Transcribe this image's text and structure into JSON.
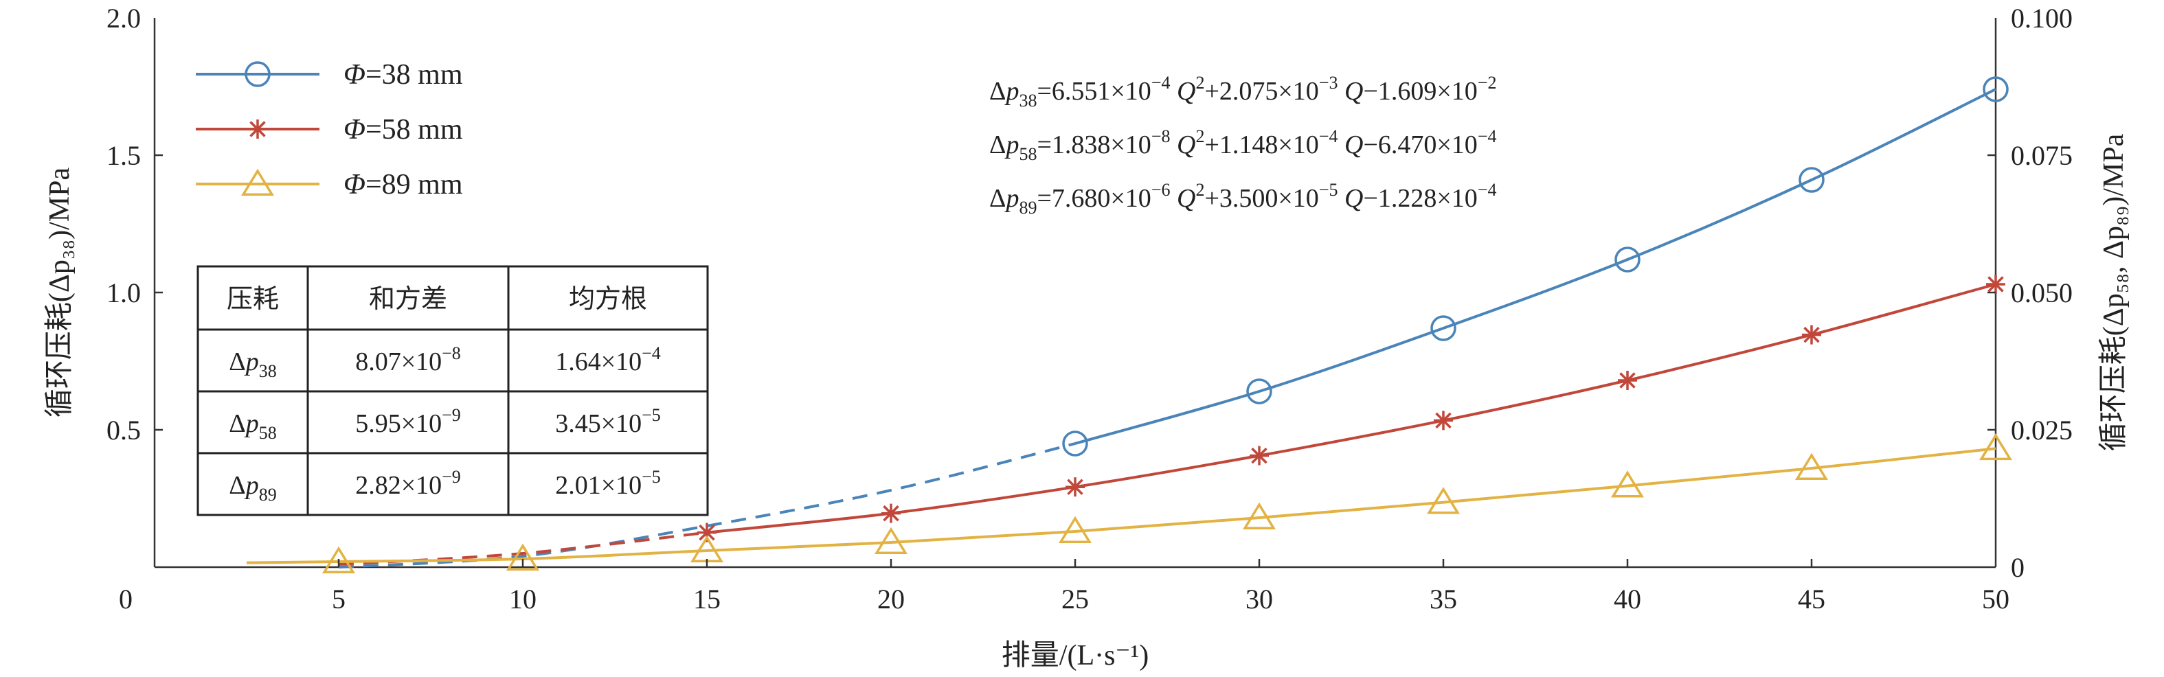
{
  "chart_data": {
    "type": "line",
    "xlabel": "排量/(L·s⁻¹)",
    "ylabel_left": "循环压耗(Δp₃₈)/MPa",
    "ylabel_right": "循环压耗(Δp₅₈, Δp₈₉)/MPa",
    "xlim": [
      0,
      50
    ],
    "ylim_left": [
      0,
      2.0
    ],
    "ylim_right": [
      0,
      0.1
    ],
    "x_ticks": [
      "0",
      "5",
      "10",
      "15",
      "20",
      "25",
      "30",
      "35",
      "40",
      "45",
      "50"
    ],
    "y_ticks_left": [
      "0.5",
      "1.0",
      "1.5",
      "2.0"
    ],
    "y_ticks_right": [
      "0",
      "0.025",
      "0.050",
      "0.075",
      "0.100"
    ],
    "legend_position": "top-left",
    "series": [
      {
        "name": "Φ=38 mm",
        "axis": "left",
        "marker": "circle",
        "color": "#4a84b8",
        "x": [
          25,
          30,
          35,
          40,
          45,
          50
        ],
        "y": [
          0.45,
          0.64,
          0.87,
          1.12,
          1.41,
          1.74
        ],
        "extrapolated_x": [
          5,
          10,
          15,
          20,
          25
        ],
        "extrapolated_y": [
          0.0,
          0.04,
          0.15,
          0.28,
          0.45
        ]
      },
      {
        "name": "Φ=58 mm",
        "axis": "right",
        "marker": "asterisk",
        "color": "#c0473a",
        "x": [
          15,
          20,
          25,
          30,
          35,
          40,
          45,
          50
        ],
        "y": [
          0.0063,
          0.0098,
          0.0146,
          0.0203,
          0.0267,
          0.034,
          0.0423,
          0.0515
        ],
        "extrapolated_x": [
          5,
          10,
          15
        ],
        "extrapolated_y": [
          0.0005,
          0.0025,
          0.0063
        ]
      },
      {
        "name": "Φ=89 mm",
        "axis": "right",
        "marker": "triangle",
        "color": "#e2b243",
        "x": [
          5,
          10,
          15,
          20,
          25,
          30,
          35,
          40,
          45,
          50
        ],
        "y": [
          0.001,
          0.0015,
          0.003,
          0.0045,
          0.0065,
          0.009,
          0.0118,
          0.0148,
          0.018,
          0.0216
        ]
      }
    ],
    "equations": [
      {
        "lhs": "Δp",
        "sub": "38",
        "a": "6.551×10",
        "ae": "−4",
        "b": "+2.075×10",
        "be": "−3",
        "c": "−1.609×10",
        "ce": "−2"
      },
      {
        "lhs": "Δp",
        "sub": "58",
        "a": "1.838×10",
        "ae": "−8",
        "b": "+1.148×10",
        "be": "−4",
        "c": "−6.470×10",
        "ce": "−4"
      },
      {
        "lhs": "Δp",
        "sub": "89",
        "a": "7.680×10",
        "ae": "−6",
        "b": "+3.500×10",
        "be": "−5",
        "c": "−1.228×10",
        "ce": "−4"
      }
    ],
    "table": {
      "headers": [
        "压耗",
        "和方差",
        "均方根"
      ],
      "rows": [
        {
          "label": "Δp",
          "sub": "38",
          "sse": "8.07×10",
          "sse_e": "−8",
          "rmse": "1.64×10",
          "rmse_e": "−4"
        },
        {
          "label": "Δp",
          "sub": "58",
          "sse": "5.95×10",
          "sse_e": "−9",
          "rmse": "3.45×10",
          "rmse_e": "−5"
        },
        {
          "label": "Δp",
          "sub": "89",
          "sse": "2.82×10",
          "sse_e": "−9",
          "rmse": "2.01×10",
          "rmse_e": "−5"
        }
      ]
    }
  }
}
